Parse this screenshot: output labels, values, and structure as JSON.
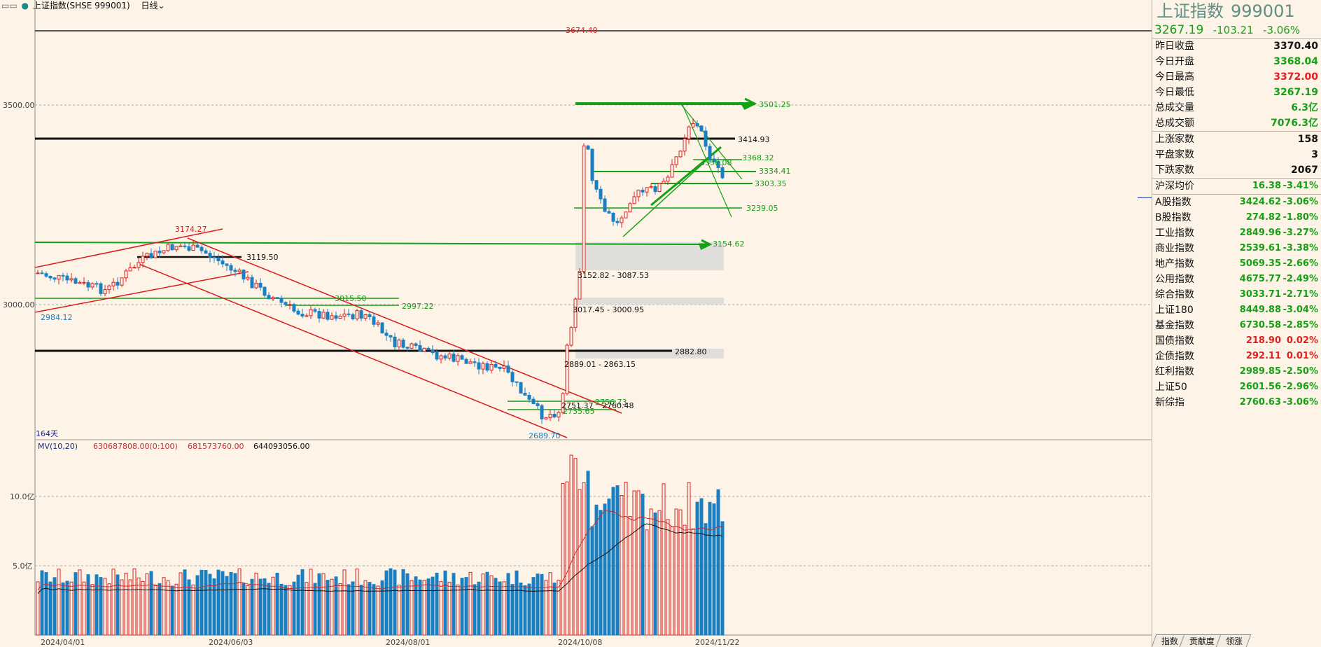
{
  "header": {
    "menu_glyph": "▭▭",
    "instrument": "上证指数(SHSE 999001)",
    "period": "日线",
    "period_icon": "chevron-down-icon"
  },
  "chart": {
    "price_axis": [
      "3500.00",
      "3000.00"
    ],
    "volume_axis": [
      "10.0亿",
      "5.0亿"
    ],
    "dates": [
      "2024/04/01",
      "2024/06/03",
      "2024/08/01",
      "2024/10/08",
      "2024/11/22"
    ],
    "days_label": "164天",
    "indicator": {
      "name": "MV(10,20)",
      "v1": "630687808.00(0:100)",
      "v2": "681573760.00",
      "v3": "644093056.00"
    },
    "colors": {
      "up": "#e02020",
      "down": "#1a7fc1",
      "line_green": "#15a015",
      "channel_red": "#d81e1e"
    },
    "labels": {
      "high_peak": "3674.40",
      "level_3501": "3501.25",
      "level_3414": "3414.93",
      "level_3368": "3368.32",
      "level_3356": "3356.08",
      "level_3334": "3334.41",
      "level_3303": "3303.35",
      "level_3239": "3239.05",
      "level_3174": "3174.27",
      "level_3154": "3154.62",
      "level_3119": "3119.50",
      "gap_1": "3152.82 - 3087.53",
      "gap_2": "3017.45 - 3000.95",
      "level_3015": "3015.50",
      "level_2997": "2997.22",
      "low_2984": "2984.12",
      "level_2882": "2882.80",
      "gap_3": "2889.01 - 2863.15",
      "level_2756": "2756.73",
      "level_2751": "2751.37",
      "level_2760": "2760.48",
      "level_2735": "2735.65",
      "low_2689": "2689.70"
    }
  },
  "panel": {
    "name": "上证指数",
    "code": "999001",
    "price": "3267.19",
    "change": "-103.21",
    "change_pct": "-3.06%",
    "stats": [
      {
        "k": "昨日收盘",
        "v": "3370.40",
        "color": "#111111"
      },
      {
        "k": "今日开盘",
        "v": "3368.04",
        "color": "#15a015"
      },
      {
        "k": "今日最高",
        "v": "3372.00",
        "color": "#e02020"
      },
      {
        "k": "今日最低",
        "v": "3267.19",
        "color": "#15a015"
      },
      {
        "k": "总成交量",
        "v": "6.3亿",
        "color": "#15a015"
      },
      {
        "k": "总成交额",
        "v": "7076.3亿",
        "color": "#15a015"
      }
    ],
    "breadth": [
      {
        "k": "上涨家数",
        "v": "158",
        "color": "#111111"
      },
      {
        "k": "平盘家数",
        "v": "3",
        "color": "#111111"
      },
      {
        "k": "下跌家数",
        "v": "2067",
        "color": "#111111"
      }
    ],
    "avg": {
      "k": "沪深均价",
      "v": "16.38",
      "c": "-3.41%"
    },
    "indices": [
      {
        "k": "A股指数",
        "v": "3424.62",
        "c": "-3.06%",
        "up": false
      },
      {
        "k": "B股指数",
        "v": "274.82",
        "c": "-1.80%",
        "up": false
      },
      {
        "k": "工业指数",
        "v": "2849.96",
        "c": "-3.27%",
        "up": false
      },
      {
        "k": "商业指数",
        "v": "2539.61",
        "c": "-3.38%",
        "up": false
      },
      {
        "k": "地产指数",
        "v": "5069.35",
        "c": "-2.66%",
        "up": false
      },
      {
        "k": "公用指数",
        "v": "4675.77",
        "c": "-2.49%",
        "up": false
      },
      {
        "k": "综合指数",
        "v": "3033.71",
        "c": "-2.71%",
        "up": false
      },
      {
        "k": "上证180",
        "v": "8449.88",
        "c": "-3.04%",
        "up": false
      },
      {
        "k": "基金指数",
        "v": "6730.58",
        "c": "-2.85%",
        "up": false
      },
      {
        "k": "国债指数",
        "v": "218.90",
        "c": "0.02%",
        "up": true
      },
      {
        "k": "企债指数",
        "v": "292.11",
        "c": "0.01%",
        "up": true
      },
      {
        "k": "红利指数",
        "v": "2989.85",
        "c": "-2.50%",
        "up": false
      },
      {
        "k": "上证50",
        "v": "2601.56",
        "c": "-2.96%",
        "up": false
      },
      {
        "k": "新综指",
        "v": "2760.63",
        "c": "-3.06%",
        "up": false
      }
    ],
    "tabs": [
      "指数",
      "贡献度",
      "领涨"
    ]
  }
}
